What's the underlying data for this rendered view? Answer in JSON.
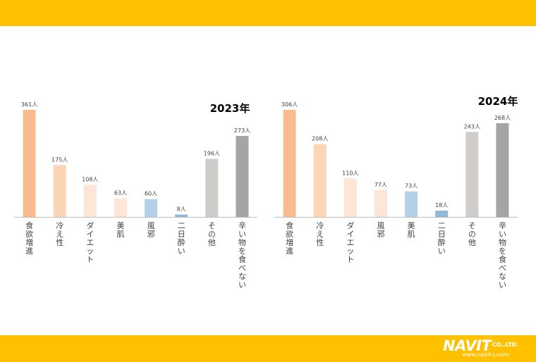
{
  "chart_data": [
    {
      "type": "bar",
      "title": "2023年",
      "categories": [
        "食欲増進",
        "冷え性",
        "ダイエット",
        "美肌",
        "風邪",
        "二日酔い",
        "その他",
        "辛い物を食べない"
      ],
      "values": [
        361,
        175,
        108,
        63,
        60,
        8,
        196,
        273
      ],
      "value_labels": [
        "361人",
        "175人",
        "108人",
        "63人",
        "60人",
        "8人",
        "196人",
        "273人"
      ],
      "colors": [
        "#f9bc8f",
        "#fbd5b6",
        "#fde6d5",
        "#fde6d5",
        "#b3cfea",
        "#92b7dc",
        "#cfcccc",
        "#a6a4a4"
      ],
      "ylim": [
        0,
        361
      ],
      "grid": false,
      "legend": "none"
    },
    {
      "type": "bar",
      "title": "2024年",
      "categories": [
        "食欲増進",
        "冷え性",
        "ダイエット",
        "風邪",
        "美肌",
        "二日酔い",
        "その他",
        "辛い物を食べない"
      ],
      "values": [
        306,
        208,
        110,
        77,
        73,
        18,
        243,
        268
      ],
      "value_labels": [
        "306人",
        "208人",
        "110人",
        "77人",
        "73人",
        "18人",
        "243人",
        "268人"
      ],
      "colors": [
        "#f9bc8f",
        "#fbd5b6",
        "#fde6d5",
        "#fde6d5",
        "#b3cfea",
        "#92b7dc",
        "#cfcccc",
        "#a6a4a4"
      ],
      "ylim": [
        0,
        306
      ],
      "grid": false,
      "legend": "none"
    }
  ],
  "logo": {
    "name": "NAVIT",
    "company": "CO.,LTD.",
    "url": "www.navit-j.com"
  },
  "colors": {
    "banner": "#ffc000",
    "axis": "#bfbfbf",
    "label": "#404040"
  }
}
